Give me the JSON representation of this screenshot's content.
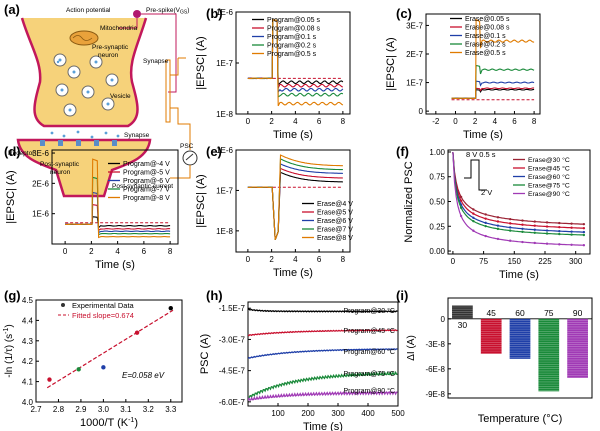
{
  "panels": {
    "a": {
      "letter": "(a)",
      "labels": {
        "action_potential": "Action potential",
        "pre_spike": "Pre-spike(V",
        "pre_spike_sub": "GS",
        "pre_spike_close": ")",
        "mitochondria": "Mitochondria",
        "presynaptic": "Pre-synaptic",
        "presynaptic2": "neuron",
        "vesicle": "Vesicle",
        "synapse_top": "Synapse",
        "synapse_bottom": "Synapse",
        "receptor": "Receptor",
        "postsynaptic": "Post-synaptic",
        "postsynaptic2": "neuron",
        "psc": "PSC",
        "post_current": "Post-synaptic current"
      }
    },
    "b": {
      "letter": "(b)",
      "colors": [
        "#000000",
        "#c8102e",
        "#1f3fa8",
        "#1a8a3a",
        "#e07b00"
      ]
    },
    "c": {
      "letter": "(c)",
      "colors": [
        "#000000",
        "#c8102e",
        "#1f3fa8",
        "#1a8a3a",
        "#e07b00"
      ]
    },
    "d": {
      "letter": "(d)",
      "colors": [
        "#000000",
        "#c8102e",
        "#1f3fa8",
        "#1a8a3a",
        "#e07b00"
      ]
    },
    "e": {
      "letter": "(e)",
      "colors": [
        "#000000",
        "#c8102e",
        "#1f3fa8",
        "#1a8a3a",
        "#e07b00"
      ]
    },
    "f": {
      "letter": "(f)",
      "inset": {
        "v_high": "8 V",
        "width": "0.5 s",
        "v_low": "2 V"
      }
    },
    "g": {
      "letter": "(g)",
      "legend": {
        "points": "Experimental Data",
        "fit": "Fitted slope=0.674"
      },
      "annotation": "E=0.058 eV"
    },
    "h": {
      "letter": "(h)",
      "colors": [
        "#000000",
        "#c8102e",
        "#1f3fa8",
        "#1a8a3a",
        "#a03ab5"
      ]
    },
    "i": {
      "letter": "(i)"
    }
  },
  "chart_data": [
    {
      "panel": "b",
      "type": "line",
      "xlabel": "Time (s)",
      "ylabel": "|EPSC| (A)",
      "log_y": true,
      "xlim": [
        -1,
        8.6
      ],
      "ylim": [
        1e-08,
        1e-06
      ],
      "x_ticks": [
        "0",
        "2",
        "4",
        "6",
        "8"
      ],
      "y_ticks": [
        "1E-8",
        "1E-7",
        "1E-6"
      ],
      "reference_line": 5e-08,
      "series": [
        {
          "name": "Program@0.05 s",
          "baseline": 5e-08,
          "peak": 7e-07,
          "final": 4.2e-08
        },
        {
          "name": "Program@0.08 s",
          "baseline": 5e-08,
          "peak": 7e-07,
          "final": 3.6e-08
        },
        {
          "name": "Program@0.1 s",
          "baseline": 5e-08,
          "peak": 7e-07,
          "final": 3e-08
        },
        {
          "name": "Program@0.2 s",
          "baseline": 5e-08,
          "peak": 7e-07,
          "final": 2.4e-08
        },
        {
          "name": "Program@0.5 s",
          "baseline": 5e-08,
          "peak": 7e-07,
          "final": 1.6e-08
        }
      ]
    },
    {
      "panel": "c",
      "type": "line",
      "xlabel": "Time (s)",
      "ylabel": "|EPSC| (A)",
      "xlim": [
        -3,
        8.6
      ],
      "ylim": [
        -1e-08,
        3.4e-07
      ],
      "x_ticks": [
        "-2",
        "0",
        "2",
        "4",
        "6",
        "8"
      ],
      "y_ticks": [
        "0",
        "1E-7",
        "2E-7",
        "3E-7"
      ],
      "reference_line": 4e-08,
      "series": [
        {
          "name": "Erase@0.05 s",
          "baseline": 4.5e-08,
          "peak": 7.5e-08,
          "final": 7.5e-08
        },
        {
          "name": "Erase@0.08 s",
          "baseline": 4.5e-08,
          "peak": 8e-08,
          "final": 8e-08
        },
        {
          "name": "Erase@0.1 s",
          "baseline": 4.5e-08,
          "peak": 1.05e-07,
          "final": 1e-07
        },
        {
          "name": "Erase@0.2 s",
          "baseline": 4.5e-08,
          "peak": 1.6e-07,
          "final": 1.45e-07
        },
        {
          "name": "Erase@0.5 s",
          "baseline": 4.5e-08,
          "peak": 3.2e-07,
          "final": 2.45e-07
        }
      ]
    },
    {
      "panel": "d",
      "type": "line",
      "xlabel": "Time (s)",
      "ylabel": "|EPSC| (A)",
      "xlim": [
        -1,
        8.6
      ],
      "ylim": [
        0,
        3.1e-06
      ],
      "x_ticks": [
        "0",
        "2",
        "4",
        "6",
        "8"
      ],
      "y_ticks": [
        "1E-6",
        "2E-6",
        "3E-6"
      ],
      "reference_line": 7e-07,
      "series": [
        {
          "name": "Program@-4 V",
          "baseline": 6.5e-07,
          "peak": 9e-07,
          "final": 6e-07
        },
        {
          "name": "Program@-5 V",
          "baseline": 6.5e-07,
          "peak": 1.3e-06,
          "final": 5e-07
        },
        {
          "name": "Program@-6 V",
          "baseline": 6.5e-07,
          "peak": 1.7e-06,
          "final": 4.2e-07
        },
        {
          "name": "Program@-7 V",
          "baseline": 6.5e-07,
          "peak": 2.2e-06,
          "final": 3.4e-07
        },
        {
          "name": "Program@-8 V",
          "baseline": 6.5e-07,
          "peak": 2.8e-06,
          "final": 2.4e-07
        }
      ]
    },
    {
      "panel": "e",
      "type": "line",
      "xlabel": "Time (s)",
      "ylabel": "|EPSC| (A)",
      "log_y": true,
      "xlim": [
        -1,
        8.6
      ],
      "ylim": [
        3e-09,
        1e-06
      ],
      "x_ticks": [
        "0",
        "2",
        "4",
        "6",
        "8"
      ],
      "y_ticks": [
        "1E-8",
        "1E-7",
        "1E-6"
      ],
      "reference_line": 1.2e-07,
      "series": [
        {
          "name": "Erase@4 V",
          "baseline": 1.2e-07,
          "dip": 6e-09,
          "peak": 2.8e-07,
          "final": 1.6e-07
        },
        {
          "name": "Erase@5 V",
          "baseline": 1.2e-07,
          "dip": 6e-09,
          "peak": 3.5e-07,
          "final": 2e-07
        },
        {
          "name": "Erase@6 V",
          "baseline": 1.2e-07,
          "dip": 6e-09,
          "peak": 4.5e-07,
          "final": 2.6e-07
        },
        {
          "name": "Erase@7 V",
          "baseline": 1.2e-07,
          "dip": 6e-09,
          "peak": 6e-07,
          "final": 3.2e-07
        },
        {
          "name": "Erase@8 V",
          "baseline": 1.2e-07,
          "dip": 6e-09,
          "peak": 7.5e-07,
          "final": 4e-07
        }
      ]
    },
    {
      "panel": "f",
      "type": "line",
      "xlabel": "Time (s)",
      "ylabel": "Normalized PSC",
      "xlim": [
        -12,
        335
      ],
      "ylim": [
        -0.03,
        1.02
      ],
      "x_ticks": [
        "0",
        "75",
        "150",
        "225",
        "300"
      ],
      "y_ticks": [
        "0.00",
        "0.25",
        "0.50",
        "0.75",
        "1.00"
      ],
      "series": [
        {
          "name": "Erase@30 °C",
          "color": "#9b2335",
          "final": 0.18
        },
        {
          "name": "Erase@45 °C",
          "color": "#c8102e",
          "final": 0.15
        },
        {
          "name": "Erase@60 °C",
          "color": "#1f3fa8",
          "final": 0.12
        },
        {
          "name": "Erase@75 °C",
          "color": "#1a8a3a",
          "final": 0.1
        },
        {
          "name": "Erase@90 °C",
          "color": "#a03ab5",
          "final": 0.0
        }
      ]
    },
    {
      "panel": "g",
      "type": "scatter",
      "xlabel": "1000/T (K",
      "xlabel_sup": "-1",
      "xlabel_close": ")",
      "ylabel": "-ln (1/τ) (s",
      "ylabel_sup": "-1",
      "ylabel_close": ")",
      "xlim": [
        2.7,
        3.35
      ],
      "ylim": [
        4.0,
        4.5
      ],
      "x_ticks": [
        "2.7",
        "2.8",
        "2.9",
        "3.0",
        "3.1",
        "3.2",
        "3.3"
      ],
      "y_ticks": [
        "4.0",
        "4.1",
        "4.2",
        "4.3",
        "4.4",
        "4.5"
      ],
      "points": [
        {
          "x": 2.76,
          "y": 4.11,
          "color": "#c8102e"
        },
        {
          "x": 2.89,
          "y": 4.16,
          "color": "#1a8a3a"
        },
        {
          "x": 3.0,
          "y": 4.17,
          "color": "#1f3fa8"
        },
        {
          "x": 3.15,
          "y": 4.34,
          "color": "#c8102e"
        },
        {
          "x": 3.3,
          "y": 4.46,
          "color": "#000000"
        }
      ],
      "fit": {
        "x": [
          2.75,
          3.31
        ],
        "y": [
          4.07,
          4.45
        ]
      }
    },
    {
      "panel": "h",
      "type": "line",
      "xlabel": "Time (s)",
      "ylabel": "PSC (A)",
      "xlim": [
        0,
        500
      ],
      "ylim": [
        -6.2e-07,
        -1.2e-07
      ],
      "x_ticks": [
        "100",
        "200",
        "300",
        "400",
        "500"
      ],
      "y_ticks": [
        "-1.5E-7",
        "-3.0E-7",
        "-4.5E-7",
        "-6.0E-7"
      ],
      "series": [
        {
          "name": "Program@30 °C",
          "start": -1.55e-07,
          "end": -1.65e-07
        },
        {
          "name": "Program@45 °C",
          "start": -2.8e-07,
          "end": -2.55e-07
        },
        {
          "name": "Program@60 °C",
          "start": -3.9e-07,
          "end": -3.45e-07
        },
        {
          "name": "Program@75 °C",
          "start": -5.8e-07,
          "end": -4.6e-07
        },
        {
          "name": "Program@90 °C",
          "start": -5.9e-07,
          "end": -5.55e-07
        }
      ]
    },
    {
      "panel": "i",
      "type": "bar",
      "xlabel": "Temperature (°C)",
      "ylabel": "ΔI (A)",
      "ylim": [
        -9.5e-08,
        2.5e-08
      ],
      "y_ticks": [
        "0",
        "-3E-8",
        "-6E-8",
        "-9E-8"
      ],
      "categories": [
        "30",
        "45",
        "60",
        "75",
        "90"
      ],
      "values": [
        1.6e-08,
        -4.2e-08,
        -4.8e-08,
        -8.7e-08,
        -7.1e-08
      ],
      "colors": [
        "#333333",
        "#c8102e",
        "#1f3fa8",
        "#1a8a3a",
        "#a03ab5"
      ]
    }
  ]
}
